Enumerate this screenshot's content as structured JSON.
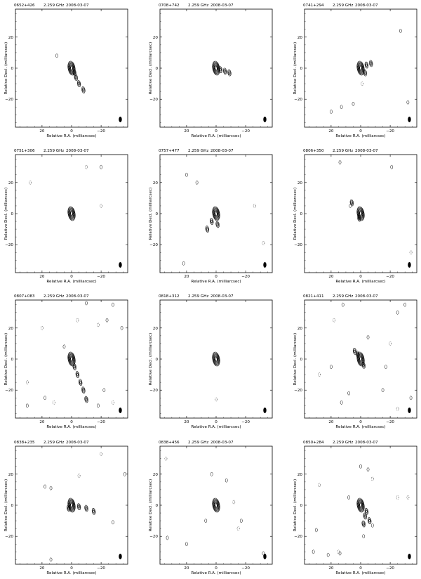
{
  "figure": {
    "xlabel": "Relative R.A. (milliarcsec)",
    "ylabel": "Relative Decl. (milliarcsec)",
    "frequency": "2.259 GHz",
    "date": "2008-03-07",
    "xticks": [
      "20",
      "0",
      "−20"
    ],
    "yticks": [
      "20",
      "0",
      "−20"
    ],
    "xlim": [
      38,
      -38
    ],
    "ylim": [
      -38,
      38
    ],
    "tick_values": [
      20,
      0,
      -20
    ],
    "grid": false,
    "contour_color": "#000000"
  },
  "chart_data": [
    {
      "type": "contour",
      "source": "0652+426",
      "ra": [
        0,
        -2,
        -3,
        -5,
        -8
      ],
      "dec": [
        0,
        -3,
        -6,
        -10,
        -14
      ],
      "islands": [
        {
          "ra": 10,
          "dec": 8,
          "neg": false
        }
      ],
      "beam": {
        "ra": -33,
        "dec": -33
      }
    },
    {
      "type": "contour",
      "source": "0708+742",
      "ra": [
        0,
        -3,
        -6,
        -9
      ],
      "dec": [
        0,
        -1,
        -2,
        -3
      ],
      "islands": [],
      "beam": {
        "ra": -33,
        "dec": -33
      }
    },
    {
      "type": "contour",
      "source": "0741+294",
      "ra": [
        0,
        -4,
        -3,
        -7
      ],
      "dec": [
        0,
        2,
        -3,
        3
      ],
      "islands": [
        {
          "ra": -27,
          "dec": 24,
          "neg": false
        },
        {
          "ra": -1,
          "dec": -10,
          "neg": true
        },
        {
          "ra": 5,
          "dec": -23,
          "neg": false
        },
        {
          "ra": 13,
          "dec": -25,
          "neg": false
        },
        {
          "ra": -32,
          "dec": -22,
          "neg": false
        },
        {
          "ra": 20,
          "dec": -28,
          "neg": false
        }
      ],
      "beam": {
        "ra": -33,
        "dec": -33
      }
    },
    {
      "type": "contour",
      "source": "0751+306",
      "ra": [
        0
      ],
      "dec": [
        0
      ],
      "islands": [
        {
          "ra": -10,
          "dec": 30,
          "neg": true
        },
        {
          "ra": -20,
          "dec": 30,
          "neg": false
        },
        {
          "ra": -20,
          "dec": 5,
          "neg": true
        },
        {
          "ra": 28,
          "dec": 20,
          "neg": true
        }
      ],
      "beam": {
        "ra": -33,
        "dec": -33
      }
    },
    {
      "type": "contour",
      "source": "0757+477",
      "ra": [
        0,
        3,
        6,
        -1
      ],
      "dec": [
        0,
        -5,
        -10,
        -7
      ],
      "islands": [
        {
          "ra": 20,
          "dec": 25,
          "neg": false
        },
        {
          "ra": 13,
          "dec": 20,
          "neg": false
        },
        {
          "ra": -26,
          "dec": 5,
          "neg": true
        },
        {
          "ra": 22,
          "dec": -32,
          "neg": false
        },
        {
          "ra": -32,
          "dec": -19,
          "neg": true
        }
      ],
      "beam": {
        "ra": -33,
        "dec": -33
      }
    },
    {
      "type": "contour",
      "source": "0806+350",
      "ra": [
        0,
        6,
        1
      ],
      "dec": [
        0,
        7,
        -3
      ],
      "islands": [
        {
          "ra": 14,
          "dec": 33,
          "neg": false
        },
        {
          "ra": -21,
          "dec": 30,
          "neg": false
        },
        {
          "ra": -34,
          "dec": -25,
          "neg": true
        },
        {
          "ra": 7,
          "dec": 5,
          "neg": false
        }
      ],
      "beam": {
        "ra": -33,
        "dec": -33
      }
    },
    {
      "type": "contour",
      "source": "0807+083",
      "ra": [
        0,
        -2,
        -4,
        -6,
        -8,
        -10
      ],
      "dec": [
        0,
        -5,
        -10,
        -15,
        -20,
        -26
      ],
      "islands": [
        {
          "ra": -24,
          "dec": 25,
          "neg": false
        },
        {
          "ra": -28,
          "dec": 35,
          "neg": false
        },
        {
          "ra": -34,
          "dec": 20,
          "neg": false
        },
        {
          "ra": -18,
          "dec": -30,
          "neg": false
        },
        {
          "ra": -22,
          "dec": -20,
          "neg": false
        },
        {
          "ra": 18,
          "dec": -25,
          "neg": false
        },
        {
          "ra": 30,
          "dec": -30,
          "neg": false
        },
        {
          "ra": -10,
          "dec": 36,
          "neg": false
        },
        {
          "ra": 5,
          "dec": 8,
          "neg": false
        },
        {
          "ra": -18,
          "dec": 22,
          "neg": true
        },
        {
          "ra": 20,
          "dec": 20,
          "neg": true
        },
        {
          "ra": 30,
          "dec": -15,
          "neg": true
        },
        {
          "ra": -4,
          "dec": 25,
          "neg": true
        },
        {
          "ra": 12,
          "dec": -28,
          "neg": true
        },
        {
          "ra": -28,
          "dec": -28,
          "neg": true
        }
      ],
      "beam": {
        "ra": -33,
        "dec": -33
      }
    },
    {
      "type": "contour",
      "source": "0818+312",
      "ra": [
        0
      ],
      "dec": [
        0
      ],
      "islands": [
        {
          "ra": 0,
          "dec": -26,
          "neg": true
        }
      ],
      "beam": {
        "ra": -33,
        "dec": -33
      }
    },
    {
      "type": "contour",
      "source": "0821+411",
      "ra": [
        0,
        2,
        -2,
        4
      ],
      "dec": [
        0,
        3,
        -4,
        5
      ],
      "islands": [
        {
          "ra": -30,
          "dec": 35,
          "neg": false
        },
        {
          "ra": -25,
          "dec": 30,
          "neg": false
        },
        {
          "ra": -17,
          "dec": -5,
          "neg": false
        },
        {
          "ra": -5,
          "dec": 14,
          "neg": false
        },
        {
          "ra": 13,
          "dec": -28,
          "neg": false
        },
        {
          "ra": -15,
          "dec": -20,
          "neg": false
        },
        {
          "ra": 8,
          "dec": -22,
          "neg": false
        },
        {
          "ra": -34,
          "dec": -25,
          "neg": false
        },
        {
          "ra": 12,
          "dec": 35,
          "neg": false
        },
        {
          "ra": 20,
          "dec": -5,
          "neg": false
        },
        {
          "ra": 18,
          "dec": 25,
          "neg": true
        },
        {
          "ra": -20,
          "dec": 10,
          "neg": true
        },
        {
          "ra": 28,
          "dec": -10,
          "neg": true
        },
        {
          "ra": -25,
          "dec": -32,
          "neg": true
        }
      ],
      "beam": {
        "ra": -33,
        "dec": -33
      }
    },
    {
      "type": "contour",
      "source": "0838+235",
      "ra": [
        0,
        -5,
        -10,
        -15,
        2
      ],
      "dec": [
        0,
        -1,
        -2,
        -4,
        -2
      ],
      "islands": [
        {
          "ra": 18,
          "dec": 12,
          "neg": false
        },
        {
          "ra": 14,
          "dec": 11,
          "neg": false
        },
        {
          "ra": -36,
          "dec": 20,
          "neg": false
        },
        {
          "ra": -28,
          "dec": -11,
          "neg": false
        },
        {
          "ra": 14,
          "dec": -35,
          "neg": false
        },
        {
          "ra": -5,
          "dec": 19,
          "neg": true
        },
        {
          "ra": -20,
          "dec": 33,
          "neg": true
        }
      ],
      "beam": {
        "ra": -33,
        "dec": -33
      }
    },
    {
      "type": "contour",
      "source": "0838+456",
      "ra": [
        0
      ],
      "dec": [
        0
      ],
      "islands": [
        {
          "ra": 3,
          "dec": 20,
          "neg": false
        },
        {
          "ra": -7,
          "dec": 16,
          "neg": false
        },
        {
          "ra": 7,
          "dec": -10,
          "neg": false
        },
        {
          "ra": -17,
          "dec": -10,
          "neg": false
        },
        {
          "ra": 33,
          "dec": -21,
          "neg": false
        },
        {
          "ra": 20,
          "dec": -25,
          "neg": false
        },
        {
          "ra": -32,
          "dec": -31,
          "neg": false
        },
        {
          "ra": -15,
          "dec": -15,
          "neg": true
        },
        {
          "ra": -12,
          "dec": 2,
          "neg": true
        },
        {
          "ra": 34,
          "dec": 30,
          "neg": true
        }
      ],
      "beam": {
        "ra": -33,
        "dec": -33
      }
    },
    {
      "type": "contour",
      "source": "0850+284",
      "ra": [
        0,
        -4,
        -3,
        -6,
        -2
      ],
      "dec": [
        0,
        -4,
        -7,
        -10,
        -12
      ],
      "islands": [
        {
          "ra": 0,
          "dec": 25,
          "neg": false
        },
        {
          "ra": -5,
          "dec": 23,
          "neg": false
        },
        {
          "ra": 8,
          "dec": 5,
          "neg": false
        },
        {
          "ra": -2,
          "dec": -20,
          "neg": false
        },
        {
          "ra": -8,
          "dec": -13,
          "neg": false
        },
        {
          "ra": 30,
          "dec": -16,
          "neg": false
        },
        {
          "ra": 32,
          "dec": -30,
          "neg": false
        },
        {
          "ra": 22,
          "dec": -32,
          "neg": false
        },
        {
          "ra": 14,
          "dec": -31,
          "neg": false
        },
        {
          "ra": 28,
          "dec": 13,
          "neg": true
        },
        {
          "ra": -25,
          "dec": 5,
          "neg": true
        },
        {
          "ra": -32,
          "dec": 5,
          "neg": true
        },
        {
          "ra": 15,
          "dec": -30,
          "neg": true
        },
        {
          "ra": -8,
          "dec": 17,
          "neg": true
        }
      ],
      "beam": {
        "ra": -33,
        "dec": -33
      }
    }
  ]
}
